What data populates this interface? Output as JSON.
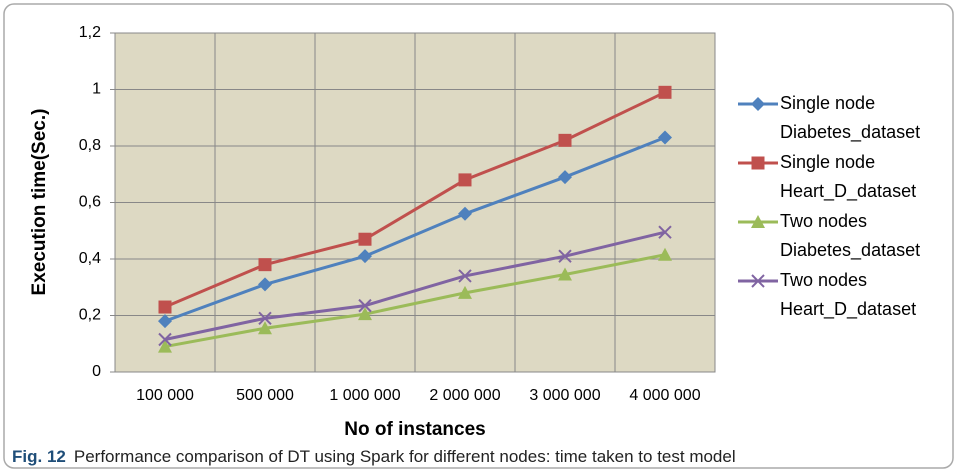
{
  "chart_data": {
    "type": "line",
    "xlabel": "No of instances",
    "ylabel": "Execution time(Sec.)",
    "categories": [
      "100 000",
      "500 000",
      "1 000 000",
      "2 000 000",
      "3 000 000",
      "4 000 000"
    ],
    "ylim": [
      0,
      1.2
    ],
    "yticks": [
      0,
      {
        "value": 0.2,
        "label": "0,2"
      },
      {
        "value": 0.4,
        "label": "0,4"
      },
      {
        "value": 0.6,
        "label": "0,6"
      },
      {
        "value": 0.8,
        "label": "0,8"
      },
      1,
      {
        "value": 1.2,
        "label": "1,2"
      }
    ],
    "grid": true,
    "legend": "right",
    "series": [
      {
        "name": "Single node Diabetes_dataset",
        "color": "#4f81bd",
        "marker": "diamond",
        "values": [
          0.18,
          0.31,
          0.41,
          0.56,
          0.69,
          0.83
        ]
      },
      {
        "name": "Single node Heart_D_dataset",
        "color": "#c0504d",
        "marker": "square",
        "values": [
          0.23,
          0.38,
          0.47,
          0.68,
          0.82,
          0.99
        ]
      },
      {
        "name": "Two nodes Diabetes_dataset",
        "color": "#9bbb59",
        "marker": "triangle",
        "values": [
          0.09,
          0.155,
          0.205,
          0.28,
          0.345,
          0.415
        ]
      },
      {
        "name": "Two nodes Heart_D_dataset",
        "color": "#8064a2",
        "marker": "x",
        "values": [
          0.115,
          0.19,
          0.235,
          0.34,
          0.41,
          0.495
        ]
      }
    ]
  },
  "figure": {
    "label": "Fig. 12",
    "caption": "Performance comparison of DT using Spark for different nodes: time taken to test model"
  }
}
